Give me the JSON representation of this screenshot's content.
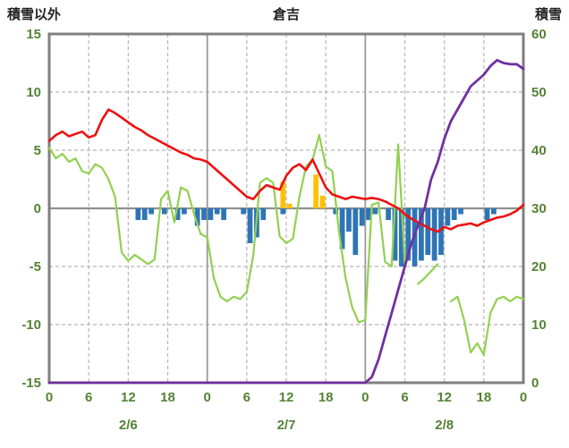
{
  "header": {
    "left_axis_title": "積雪以外",
    "chart_title": "倉吉",
    "right_axis_title": "積雪"
  },
  "chart_data": {
    "type": "line+bar",
    "title": "倉吉",
    "hours_total": 72,
    "left_axis": {
      "label": "積雪以外",
      "min": -15,
      "max": 15,
      "tick_step": 5,
      "ticks": [
        15,
        10,
        5,
        0,
        -5,
        -10,
        -15
      ]
    },
    "right_axis": {
      "label": "積雪",
      "min": 0,
      "max": 60,
      "tick_step": 10,
      "ticks": [
        60,
        50,
        40,
        30,
        20,
        10,
        0
      ]
    },
    "x_axis": {
      "tick_interval_hours": 6,
      "hour_tick_labels": [
        "0",
        "6",
        "12",
        "18",
        "0",
        "6",
        "12",
        "18",
        "0",
        "6",
        "12",
        "18",
        "0"
      ],
      "day_labels": [
        "2/6",
        "2/7",
        "2/8"
      ],
      "day_boundary_hours": [
        24,
        48
      ],
      "grid": true
    },
    "colors": {
      "border": "#7F7F7F",
      "gridline": "#B5B5B5",
      "day_line": "#9A9A9A",
      "zero_line": "#8F8F8F",
      "tick_label": "#548235",
      "title_text": "#222222"
    },
    "series": [
      {
        "name": "blue-bars",
        "type": "bar",
        "axis": "left",
        "color": "#2E75B6",
        "values": [
          0,
          0,
          0,
          0,
          0,
          0,
          0,
          0,
          0,
          0,
          0,
          0,
          0,
          -1,
          -1,
          -0.5,
          0,
          -0.5,
          0,
          -1,
          -0.5,
          0,
          -1.5,
          -1,
          -1,
          -0.5,
          -1,
          0,
          0,
          -0.5,
          -3,
          -2.5,
          -1,
          0,
          0,
          -0.5,
          0,
          0,
          0,
          0,
          0,
          0,
          0,
          -0.5,
          -3.5,
          -2,
          -4,
          -1.5,
          -1,
          -0.5,
          0,
          -1,
          -4.5,
          -5,
          -4.5,
          -5,
          -4.5,
          -4,
          -4.5,
          -4,
          -1.5,
          -1,
          -0.5,
          0,
          0,
          0,
          -1,
          -0.5,
          0,
          0,
          0,
          0
        ]
      },
      {
        "name": "orange-bars",
        "type": "bar",
        "axis": "left",
        "color": "#FFC000",
        "values": [
          0,
          0,
          0,
          0,
          0,
          0,
          0,
          0,
          0,
          0,
          0,
          0,
          0,
          0,
          0,
          0,
          0,
          0,
          0,
          0,
          0,
          0,
          0,
          0,
          0,
          0,
          0,
          0,
          0,
          0,
          0,
          0,
          0,
          0,
          0,
          2.3,
          0.4,
          0,
          0,
          0,
          2.9,
          1.1,
          0,
          0,
          0,
          0,
          0,
          0,
          0,
          0,
          0,
          0,
          0,
          0,
          0,
          0,
          0,
          0,
          0,
          0,
          0,
          0,
          0,
          0,
          0,
          0,
          0,
          0,
          0,
          0,
          0,
          0
        ]
      },
      {
        "name": "green-line",
        "type": "line",
        "axis": "left",
        "color": "#92D050",
        "width": 2.2,
        "values": [
          5.2,
          4.3,
          4.7,
          4.0,
          4.3,
          3.2,
          3.0,
          3.8,
          3.5,
          2.5,
          1.0,
          -3.8,
          -4.5,
          -4.0,
          -4.4,
          -4.8,
          -4.4,
          0.8,
          1.5,
          -1.2,
          1.8,
          1.5,
          -0.5,
          -2.2,
          -2.5,
          -6.0,
          -7.6,
          -8.0,
          -7.6,
          -7.8,
          -7.2,
          -4.0,
          2.2,
          2.6,
          2.2,
          -2.4,
          -3.0,
          -2.6,
          1.0,
          3.6,
          4.2,
          6.3,
          3.6,
          3.2,
          -2.0,
          -6.0,
          -8.5,
          -9.8,
          -9.6,
          0.3,
          0.5,
          -4.6,
          -5.0,
          5.5,
          -4.8,
          null,
          -6.5,
          -6.0,
          -5.4,
          -4.8,
          null,
          -8.0,
          -7.6,
          -9.6,
          -12.4,
          -11.6,
          -12.6,
          -9.0,
          -7.8,
          -7.6,
          -8.0,
          -7.6,
          -7.8
        ]
      },
      {
        "name": "red-line",
        "type": "line",
        "axis": "left",
        "color": "#EE1111",
        "width": 2.6,
        "values": [
          5.8,
          6.3,
          6.6,
          6.2,
          6.4,
          6.6,
          6.1,
          6.3,
          7.6,
          8.5,
          8.2,
          7.8,
          7.4,
          7.0,
          6.7,
          6.3,
          6.0,
          5.7,
          5.4,
          5.1,
          4.8,
          4.6,
          4.3,
          4.2,
          4.0,
          3.5,
          3.0,
          2.5,
          2.0,
          1.5,
          1.0,
          0.8,
          1.5,
          2.0,
          1.8,
          1.6,
          2.8,
          3.5,
          3.8,
          3.3,
          4.2,
          3.0,
          1.8,
          1.2,
          1.0,
          0.8,
          1.0,
          0.9,
          0.8,
          0.9,
          0.8,
          0.6,
          0.3,
          0.0,
          -0.5,
          -0.9,
          -1.2,
          -1.5,
          -1.8,
          -2.0,
          -1.6,
          -1.8,
          -1.5,
          -1.4,
          -1.3,
          -1.5,
          -1.2,
          -1.0,
          -0.8,
          -0.7,
          -0.5,
          -0.2,
          0.3
        ]
      },
      {
        "name": "snow-depth-purple",
        "type": "line",
        "axis": "right",
        "color": "#7030A0",
        "width": 2.8,
        "values": [
          0,
          0,
          0,
          0,
          0,
          0,
          0,
          0,
          0,
          0,
          0,
          0,
          0,
          0,
          0,
          0,
          0,
          0,
          0,
          0,
          0,
          0,
          0,
          0,
          0,
          0,
          0,
          0,
          0,
          0,
          0,
          0,
          0,
          0,
          0,
          0,
          0,
          0,
          0,
          0,
          0,
          0,
          0,
          0,
          0,
          0,
          0,
          0,
          0,
          1,
          4,
          8,
          12,
          16,
          20,
          24,
          27,
          30,
          35,
          38,
          42,
          45,
          47,
          49,
          51,
          52,
          53,
          54.5,
          55.5,
          55,
          54.8,
          54.8,
          54
        ]
      }
    ]
  }
}
